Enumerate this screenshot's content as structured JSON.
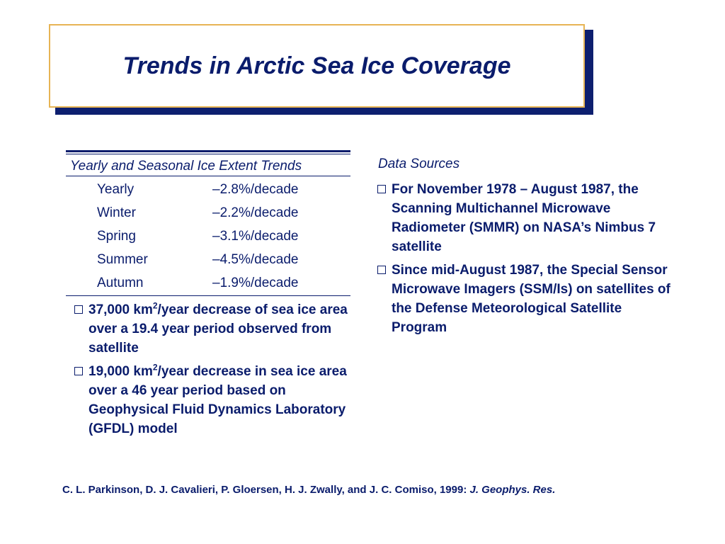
{
  "title": "Trends in Arctic Sea Ice Coverage",
  "trends_table": {
    "heading": "Yearly and Seasonal Ice Extent Trends",
    "rows": [
      {
        "season": "Yearly",
        "value": "–2.8%/decade"
      },
      {
        "season": "Winter",
        "value": "–2.2%/decade"
      },
      {
        "season": "Spring",
        "value": "–3.1%/decade"
      },
      {
        "season": "Summer",
        "value": "–4.5%/decade"
      },
      {
        "season": "Autumn",
        "value": "–1.9%/decade"
      }
    ]
  },
  "left_bullets": {
    "b1_pre": "37,000 km",
    "b1_sup": "2",
    "b1_post": "/year decrease of sea ice area over a 19.4 year period observed from satellite",
    "b2_pre": "19,000 km",
    "b2_sup": "2",
    "b2_post": "/year decrease in sea ice area over a 46 year period based on Geophysical Fluid Dynamics Laboratory (GFDL) model"
  },
  "data_sources": {
    "heading": "Data Sources",
    "items": [
      "For November 1978 – August 1987, the Scanning Multichannel Microwave Radiometer (SMMR) on NASA’s Nimbus 7 satellite",
      "Since mid-August 1987, the Special Sensor Microwave Imagers (SSM/Is) on satellites of the Defense Meteorological Satellite Program"
    ]
  },
  "citation": {
    "authors": "C. L. Parkinson, D. J. Cavalieri, P. Gloersen, H. J. Zwally, and J. C. Comiso, 1999: ",
    "journal": "J. Geophys. Res."
  },
  "colors": {
    "text": "#0a1c6c",
    "title_border": "#e7b454",
    "title_shadow": "#0d1f6f"
  }
}
